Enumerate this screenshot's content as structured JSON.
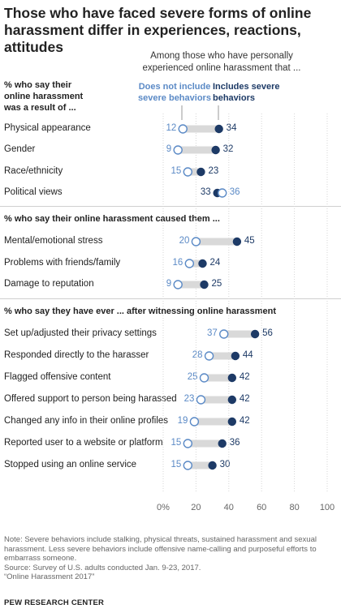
{
  "title_line1": "Those who have faced severe forms of online",
  "title_line2": "harassment differ in experiences, reactions, attitudes",
  "intro_line1": "Among those who have personally",
  "intro_line2": "experienced online harassment that ...",
  "legend": {
    "not_include_line1": "Does not include",
    "not_include_line2": "severe behaviors",
    "include_line1": "Includes severe",
    "include_line2": "behaviors"
  },
  "colors": {
    "not_include": "#5b8ac6",
    "include": "#1d3a66",
    "bar": "#d9d9d9"
  },
  "chart_data": {
    "type": "dot",
    "xlim": [
      0,
      100
    ],
    "x_ticks": [
      "0%",
      "20",
      "40",
      "60",
      "80",
      "100"
    ],
    "series_names": [
      "Does not include severe behaviors",
      "Includes severe behaviors"
    ],
    "sections": [
      {
        "title_line1": "% who say their",
        "title_line2": "online harassment",
        "title_line3": "was a result of ...",
        "rows": [
          {
            "label": "Physical appearance",
            "not_include": 12,
            "include": 34
          },
          {
            "label": "Gender",
            "not_include": 9,
            "include": 32
          },
          {
            "label": "Race/ethnicity",
            "not_include": 15,
            "include": 23
          },
          {
            "label": "Political views",
            "not_include": 36,
            "include": 33
          }
        ]
      },
      {
        "title": "% who say their online harassment caused them ...",
        "rows": [
          {
            "label": "Mental/emotional stress",
            "not_include": 20,
            "include": 45
          },
          {
            "label": "Problems with friends/family",
            "not_include": 16,
            "include": 24
          },
          {
            "label": "Damage to reputation",
            "not_include": 9,
            "include": 25
          }
        ]
      },
      {
        "title": "% who say they have ever ... after witnessing online harassment",
        "rows": [
          {
            "label": "Set up/adjusted their privacy settings",
            "not_include": 37,
            "include": 56
          },
          {
            "label": "Responded directly to the harasser",
            "not_include": 28,
            "include": 44
          },
          {
            "label": "Flagged offensive content",
            "not_include": 25,
            "include": 42
          },
          {
            "label": "Offered support to person being harassed",
            "not_include": 23,
            "include": 42
          },
          {
            "label": "Changed any info in their online profiles",
            "not_include": 19,
            "include": 42
          },
          {
            "label": "Reported user to a website or platform",
            "not_include": 15,
            "include": 36
          },
          {
            "label": "Stopped using an online service",
            "not_include": 15,
            "include": 30
          }
        ]
      }
    ]
  },
  "note_line1": "Note: Severe behaviors include stalking, physical threats, sustained harassment and sexual",
  "note_line2": "harassment. Less severe behaviors include offensive name-calling and purposeful efforts to",
  "note_line3": "embarrass someone.",
  "source_line1": "Source: Survey of U.S. adults conducted Jan. 9-23, 2017.",
  "source_line2": "“Online Harassment 2017”",
  "footer": "PEW RESEARCH CENTER"
}
